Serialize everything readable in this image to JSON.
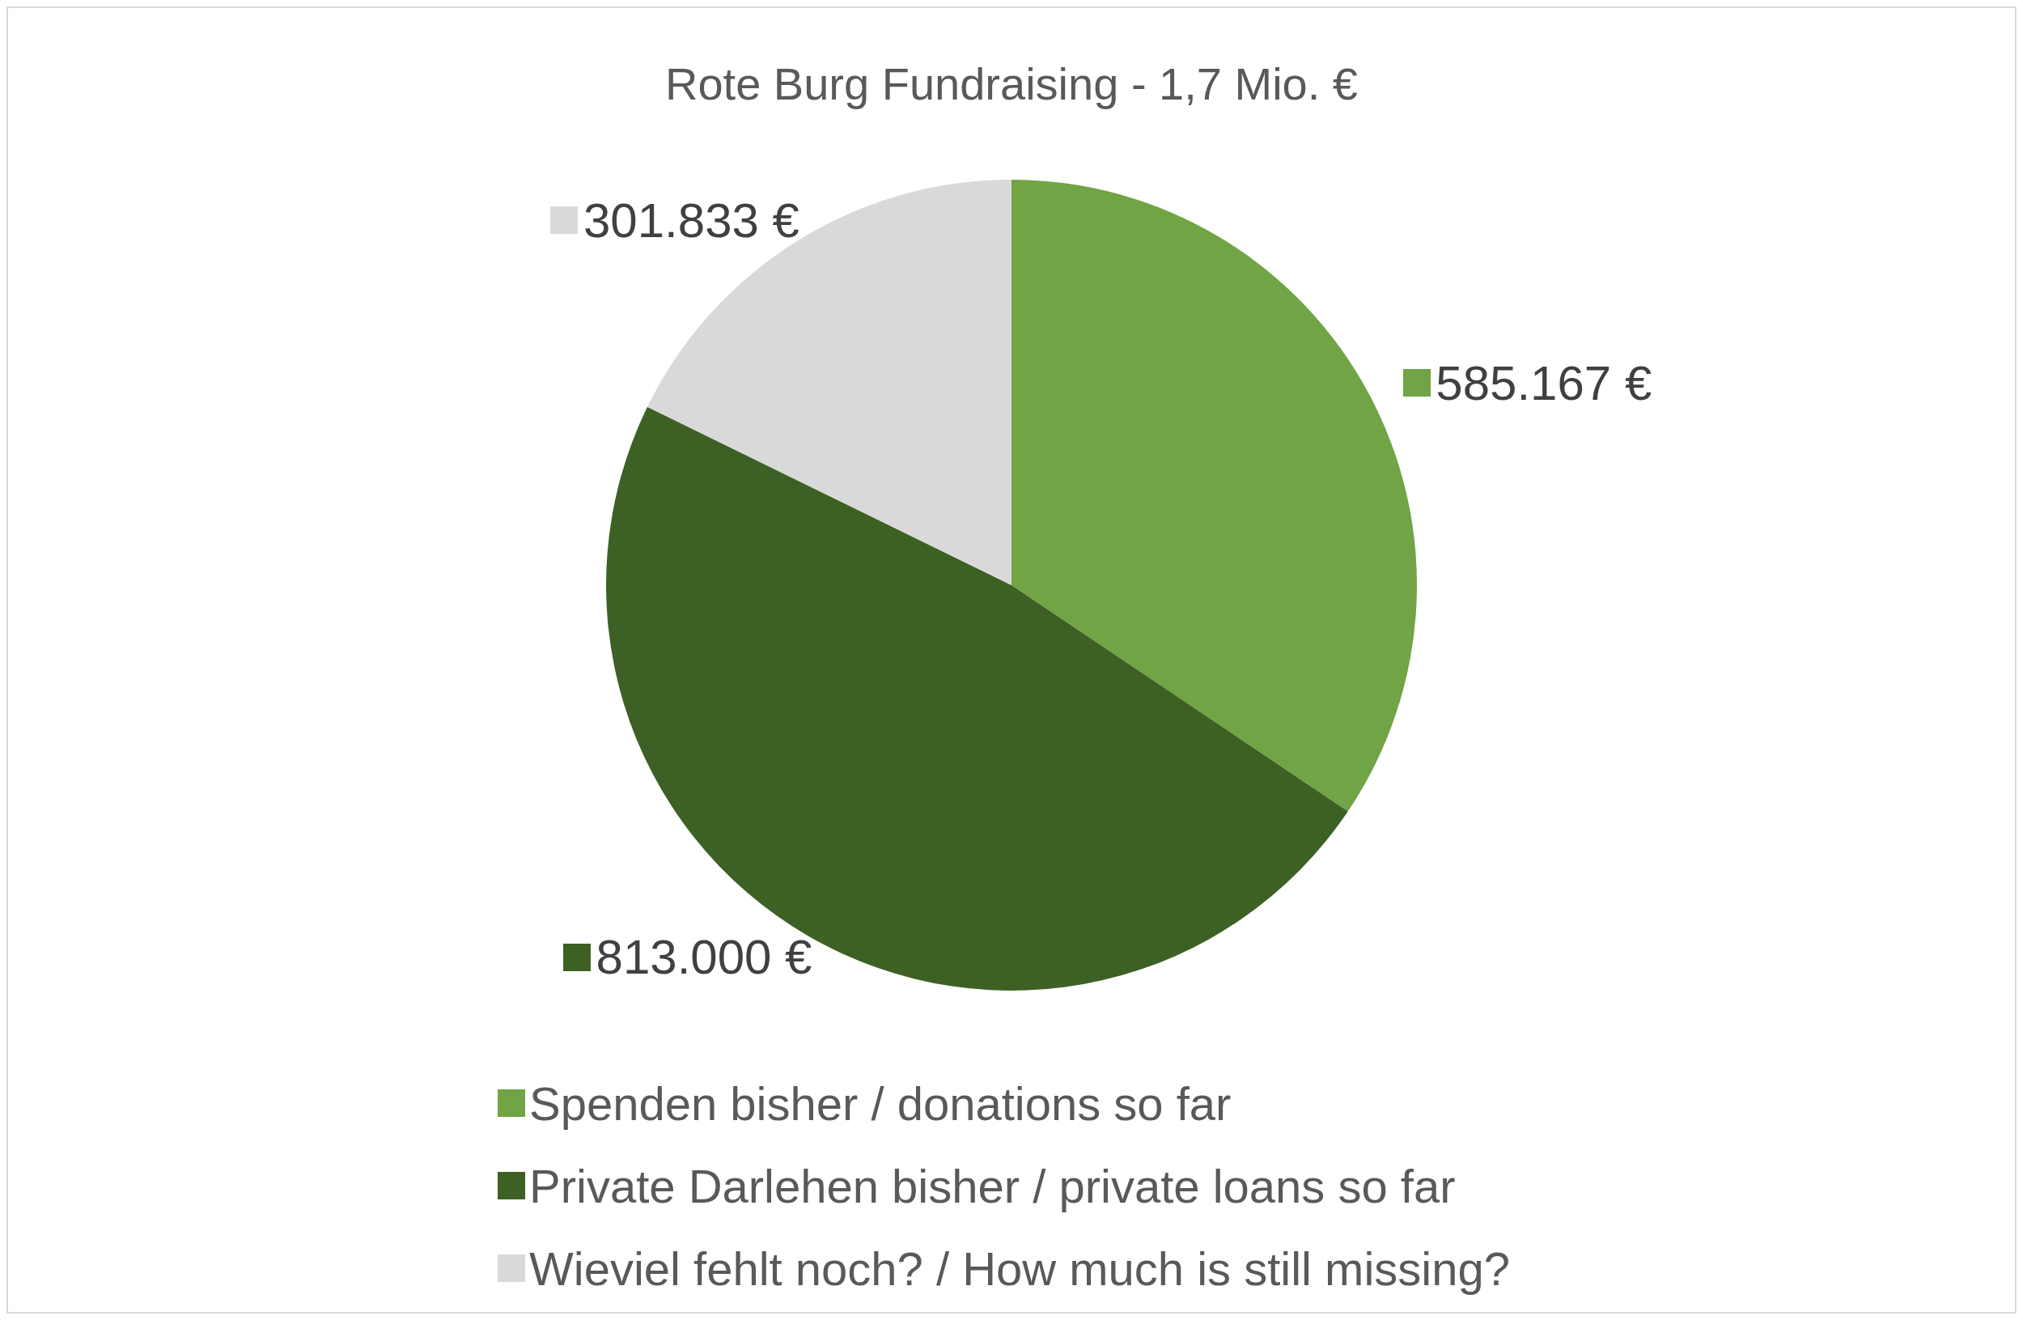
{
  "chart_data": {
    "type": "pie",
    "title": "Rote Burg Fundraising - 1,7 Mio. €",
    "categories": [
      "Spenden bisher / donations so far",
      "Private Darlehen bisher / private loans so far",
      "Wieviel fehlt noch? / How much is still missing?"
    ],
    "values": [
      585167,
      813000,
      301833
    ],
    "colors": [
      "#70a444",
      "#3d6124",
      "#d9d9d9"
    ],
    "value_labels": [
      "585.167 €",
      "813.000 €",
      "301.833 €"
    ],
    "legend": "bottom"
  }
}
